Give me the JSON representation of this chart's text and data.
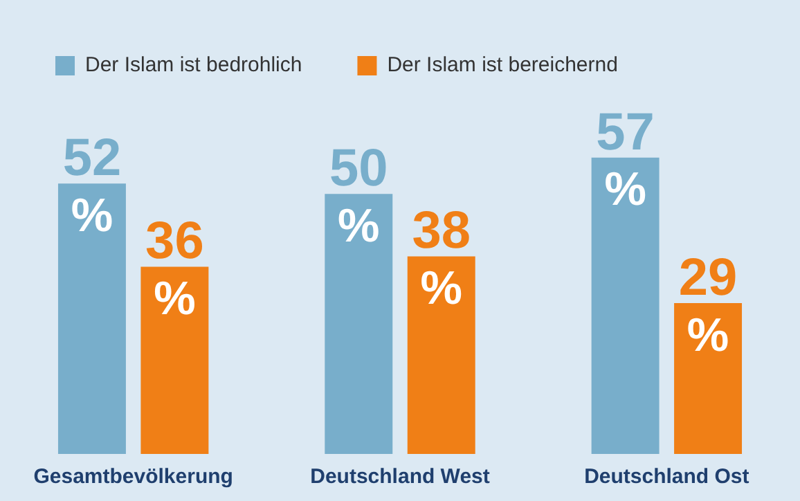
{
  "chart_data": {
    "type": "bar",
    "categories": [
      "Gesamtbevölkerung",
      "Deutschland West",
      "Deutschland Ost"
    ],
    "series": [
      {
        "name": "Der Islam ist bedrohlich",
        "color": "#78aecb",
        "values": [
          52,
          50,
          57
        ],
        "value_labels": [
          "52 %",
          "50 %",
          "57 %"
        ]
      },
      {
        "name": "Der Islam ist bereichernd",
        "color": "#f07f16",
        "values": [
          36,
          38,
          29
        ],
        "value_labels": [
          "36 %",
          "38 %",
          "29 %"
        ]
      }
    ],
    "legend": "top left",
    "grid": false,
    "tick_labels": "x"
  }
}
